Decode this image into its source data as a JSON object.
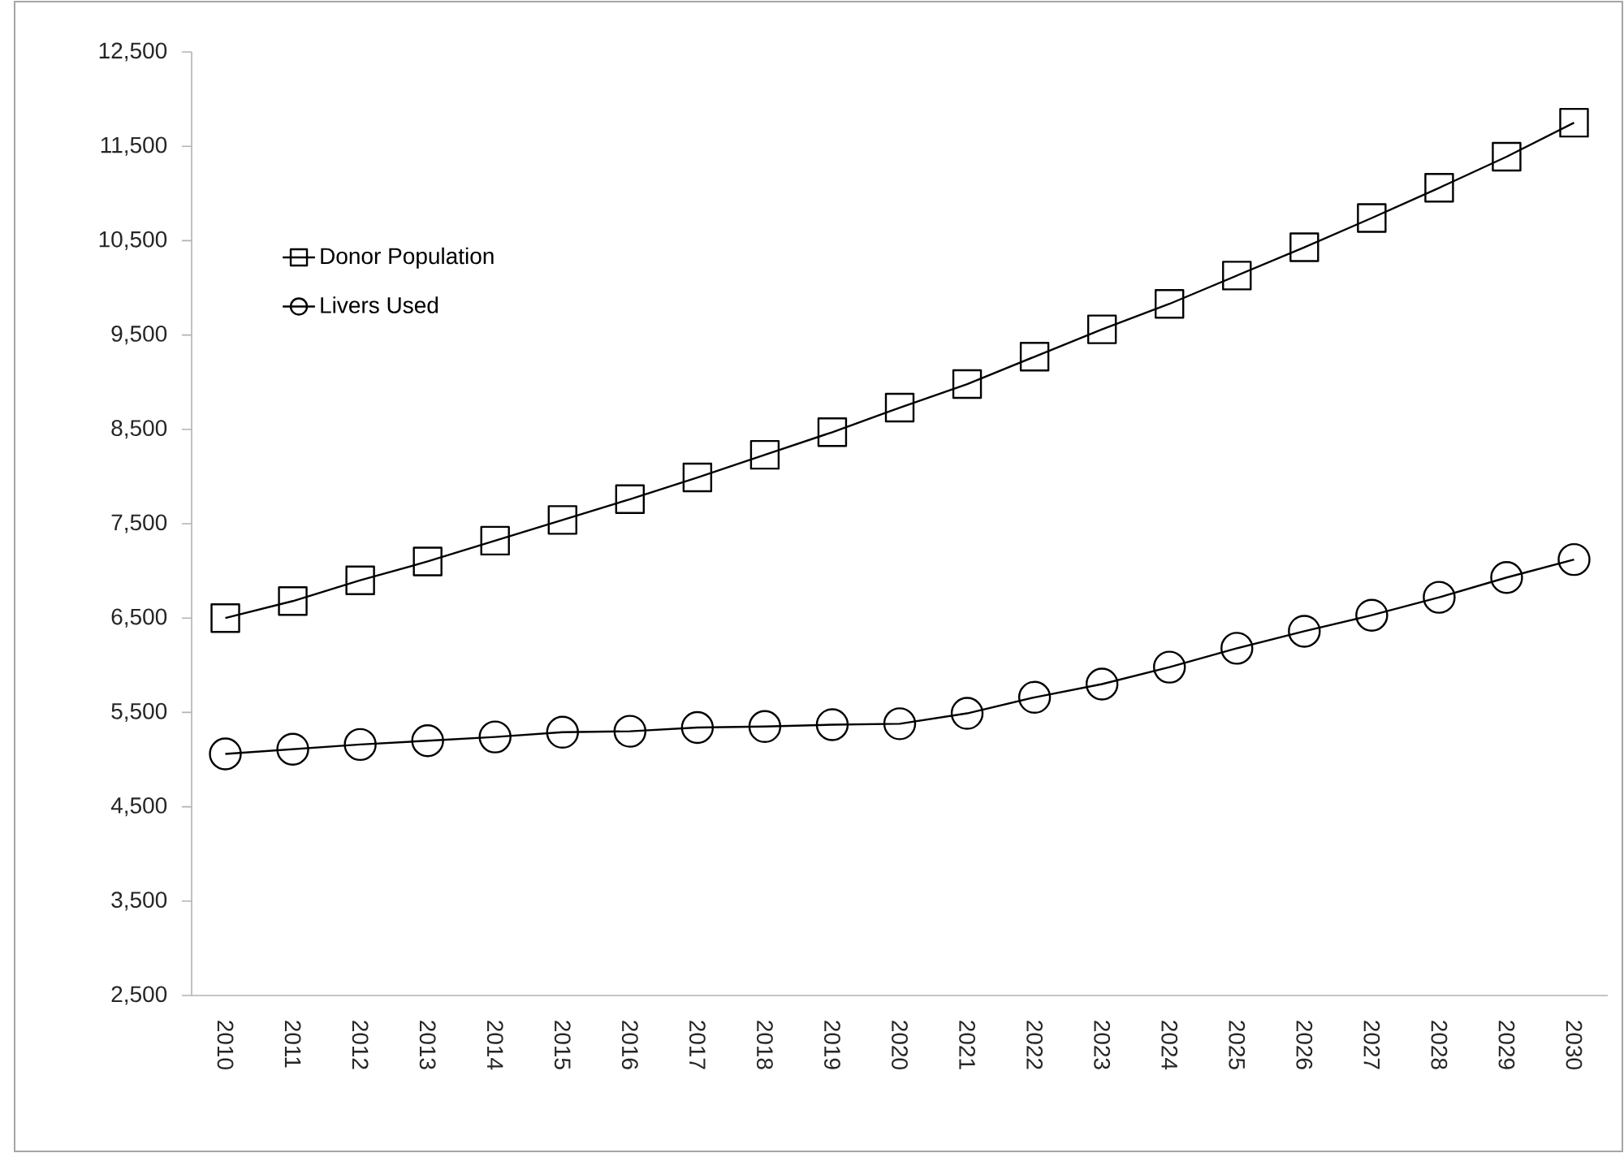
{
  "chart_data": {
    "type": "line",
    "categories": [
      "2010",
      "2011",
      "2012",
      "2013",
      "2014",
      "2015",
      "2016",
      "2017",
      "2018",
      "2019",
      "2020",
      "2021",
      "2022",
      "2023",
      "2024",
      "2025",
      "2026",
      "2027",
      "2028",
      "2029",
      "2030"
    ],
    "series": [
      {
        "name": "Donor Population",
        "color": "#000000",
        "marker": "square",
        "values": [
          6500,
          6680,
          6900,
          7100,
          7320,
          7540,
          7760,
          7990,
          8230,
          8470,
          8730,
          8980,
          9270,
          9560,
          9830,
          10130,
          10430,
          10740,
          11060,
          11390,
          11750
        ]
      },
      {
        "name": "Livers Used",
        "color": "#000000",
        "marker": "circle",
        "values": [
          5060,
          5110,
          5160,
          5200,
          5240,
          5290,
          5300,
          5340,
          5350,
          5370,
          5380,
          5490,
          5660,
          5800,
          5980,
          6180,
          6360,
          6530,
          6720,
          6930,
          7120
        ]
      }
    ],
    "ylim": [
      2500,
      12500
    ],
    "yticks": [
      {
        "value": 2500,
        "label": "2,500"
      },
      {
        "value": 3500,
        "label": "3,500"
      },
      {
        "value": 4500,
        "label": "4,500"
      },
      {
        "value": 5500,
        "label": "5,500"
      },
      {
        "value": 6500,
        "label": "6,500"
      },
      {
        "value": 7500,
        "label": "7,500"
      },
      {
        "value": 8500,
        "label": "8,500"
      },
      {
        "value": 9500,
        "label": "9,500"
      },
      {
        "value": 10500,
        "label": "10,500"
      },
      {
        "value": 11500,
        "label": "11,500"
      },
      {
        "value": 12500,
        "label": "12,500"
      }
    ],
    "grid": false,
    "legend": "top left",
    "line_style": "solid"
  }
}
